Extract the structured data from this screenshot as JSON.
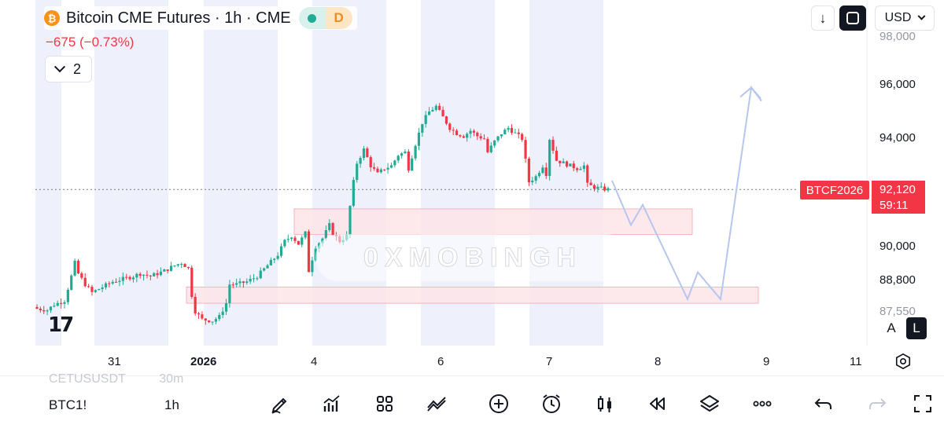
{
  "header": {
    "symbol_title": "Bitcoin CME Futures · 1h · CME",
    "coin_glyph": "₿",
    "status_letter": "D",
    "change": "−675 (−0.73%)",
    "collapsed_count": "2"
  },
  "top_right": {
    "download_glyph": "↓",
    "currency": "USD"
  },
  "price_axis": {
    "labels": [
      "96,000",
      "94,000",
      "90,000",
      "88,800"
    ],
    "partial_top": "98,000",
    "partial_bottom": "87,550",
    "current_price": "92,120",
    "countdown": "59:11",
    "symbol_tag": "BTCF2026"
  },
  "time_axis": {
    "labels": [
      "31",
      "2026",
      "4",
      "6",
      "7",
      "8",
      "9",
      "11"
    ]
  },
  "scale_buttons": {
    "auto": "A",
    "log": "L"
  },
  "watermark": "0XMOBINGH",
  "logo_text": "17",
  "bottom_bar": {
    "ghost_symbol": "CETUSUSDT",
    "ghost_interval": "30m",
    "symbol": "BTC1!",
    "interval": "1h",
    "tools": [
      "pencil-icon",
      "indicators-icon",
      "grid-icon",
      "compare-icon",
      "plus-circle-icon",
      "alarm-icon",
      "candles-icon",
      "replay-icon",
      "layers-icon",
      "more-icon",
      "undo-icon",
      "redo-icon",
      "fullscreen-icon"
    ]
  },
  "colors": {
    "up": "#22ab94",
    "down": "#f23645",
    "session_band": "#eef0fb",
    "zone_fill": "#fde4e7",
    "zone_stroke": "#f5b5bd",
    "projection": "#b7c6ee"
  },
  "chart_data": {
    "type": "candlestick",
    "title": "Bitcoin CME Futures · 1h · CME",
    "y_axis": {
      "range": [
        86900,
        98700
      ],
      "ticks": [
        96000,
        94000,
        90000,
        88800
      ]
    },
    "x_axis": {
      "ticks": [
        "31",
        "2026",
        "4",
        "6",
        "7",
        "8",
        "9",
        "11"
      ]
    },
    "last_price": 92120,
    "change": -675,
    "change_pct": -0.73,
    "price_path": [
      [
        0,
        87700
      ],
      [
        3,
        87650
      ],
      [
        5,
        87850
      ],
      [
        8,
        88000
      ],
      [
        10,
        88900
      ],
      [
        11,
        89400
      ],
      [
        12,
        89000
      ],
      [
        14,
        88600
      ],
      [
        16,
        88300
      ],
      [
        19,
        88500
      ],
      [
        22,
        88700
      ],
      [
        25,
        88800
      ],
      [
        28,
        88900
      ],
      [
        30,
        89000
      ],
      [
        33,
        88900
      ],
      [
        37,
        89100
      ],
      [
        40,
        89300
      ],
      [
        42,
        89400
      ],
      [
        44,
        89200
      ],
      [
        45,
        88200
      ],
      [
        46,
        87600
      ],
      [
        48,
        87300
      ],
      [
        51,
        87250
      ],
      [
        53,
        87400
      ],
      [
        55,
        87900
      ],
      [
        56,
        88600
      ],
      [
        58,
        88600
      ],
      [
        61,
        88700
      ],
      [
        64,
        88900
      ],
      [
        67,
        89300
      ],
      [
        70,
        89700
      ],
      [
        72,
        90200
      ],
      [
        74,
        90400
      ],
      [
        76,
        90100
      ],
      [
        78,
        90500
      ],
      [
        79,
        89100
      ],
      [
        81,
        90000
      ],
      [
        83,
        90300
      ],
      [
        85,
        90800
      ],
      [
        86,
        90500
      ],
      [
        88,
        90200
      ],
      [
        90,
        90400
      ],
      [
        91,
        91500
      ],
      [
        92,
        92400
      ],
      [
        93,
        93100
      ],
      [
        95,
        93600
      ],
      [
        97,
        93000
      ],
      [
        99,
        92700
      ],
      [
        101,
        92900
      ],
      [
        103,
        93000
      ],
      [
        105,
        93400
      ],
      [
        107,
        93500
      ],
      [
        108,
        92900
      ],
      [
        110,
        93800
      ],
      [
        112,
        94600
      ],
      [
        114,
        95000
      ],
      [
        116,
        95200
      ],
      [
        118,
        94800
      ],
      [
        120,
        94400
      ],
      [
        122,
        94200
      ],
      [
        124,
        94100
      ],
      [
        126,
        94300
      ],
      [
        128,
        94100
      ],
      [
        130,
        94000
      ],
      [
        131,
        93500
      ],
      [
        133,
        93900
      ],
      [
        135,
        94200
      ],
      [
        137,
        94400
      ],
      [
        139,
        94200
      ],
      [
        141,
        94000
      ],
      [
        142,
        93200
      ],
      [
        143,
        92400
      ],
      [
        145,
        92600
      ],
      [
        147,
        93000
      ],
      [
        148,
        92700
      ],
      [
        149,
        94000
      ],
      [
        151,
        93200
      ],
      [
        153,
        93100
      ],
      [
        155,
        93000
      ],
      [
        157,
        92900
      ],
      [
        159,
        93000
      ],
      [
        160,
        92300
      ],
      [
        162,
        92200
      ],
      [
        164,
        92150
      ],
      [
        166,
        92120
      ]
    ],
    "zones": [
      {
        "type": "rectangle",
        "price_top": 91400,
        "price_bottom": 90450
      },
      {
        "type": "rectangle",
        "price_top": 88500,
        "price_bottom": 87900
      }
    ],
    "projection_path": [
      92450,
      90800,
      91550,
      88050,
      89050,
      88050,
      95900,
      95400
    ],
    "session_bands": 8
  }
}
